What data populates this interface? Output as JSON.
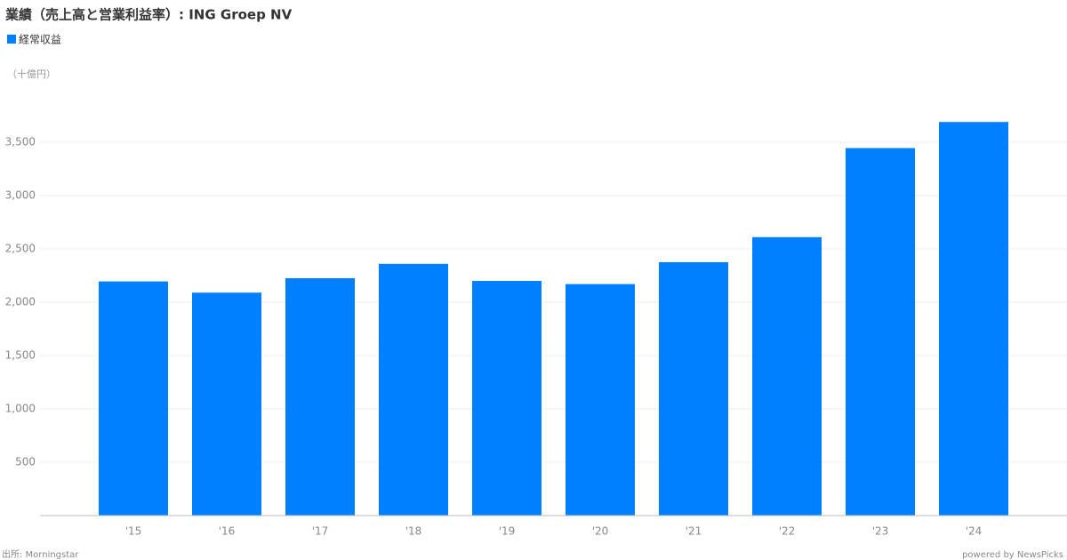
{
  "chart_data": {
    "type": "bar",
    "title": "業績（売上高と営業利益率）: ING Groep NV",
    "unit_label": "（十億円）",
    "source": "出所: Morningstar",
    "credit": "powered by NewsPicks",
    "categories": [
      "'15",
      "'16",
      "'17",
      "'18",
      "'19",
      "'20",
      "'21",
      "'22",
      "'23",
      "'24"
    ],
    "series": [
      {
        "name": "経常収益",
        "color": "#0080ff",
        "values": [
          2195,
          2090,
          2225,
          2360,
          2200,
          2170,
          2375,
          2610,
          3445,
          3690
        ]
      }
    ],
    "ylim": [
      0,
      3800
    ],
    "yticks": [
      500,
      {
        "value": 1000,
        "label": "1,000"
      },
      {
        "value": 1500,
        "label": "1,500"
      },
      {
        "value": 2000,
        "label": "2,000"
      },
      {
        "value": 2500,
        "label": "2,500"
      },
      {
        "value": 3000,
        "label": "3,000"
      },
      {
        "value": 3500,
        "label": "3,500"
      }
    ],
    "grid": true
  }
}
